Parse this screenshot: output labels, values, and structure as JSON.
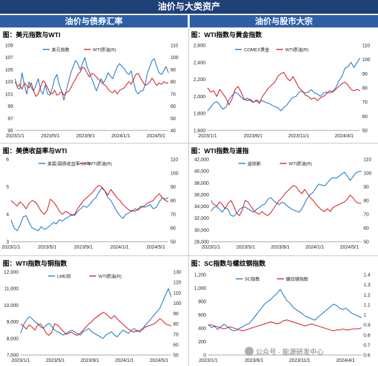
{
  "header": {
    "title": "油价与大类资产",
    "left_column": "油价与债券汇率",
    "right_column": "油价与股市大宗"
  },
  "colors": {
    "blue": "#1f77c9",
    "red": "#d62021",
    "banner": "#1f3f77",
    "colhead": "#2d5fa8"
  },
  "watermark": "公众号 · 能源研发中心",
  "chart_data": [
    {
      "id": "p1",
      "title": "图：美元指数与WTI",
      "type": "line",
      "xticks": [
        "2023/1/1",
        "2023/5/1",
        "2023/9/1",
        "2024/1/1",
        "2024/5/1"
      ],
      "left_axis": {
        "ticks": [
          "109",
          "107",
          "105",
          "103",
          "101",
          "99",
          "97",
          "95"
        ],
        "min": 95,
        "max": 109
      },
      "right_axis": {
        "ticks": [
          "110",
          "100",
          "90",
          "80",
          "70",
          "60",
          "50",
          "40"
        ],
        "min": 40,
        "max": 110
      },
      "series": [
        {
          "name": "美元指数",
          "axis": "left",
          "color": "#1f77c9",
          "values": [
            103.5,
            102.0,
            101.8,
            104.5,
            102.5,
            101.0,
            103.0,
            102.0,
            101.5,
            102.5,
            103.5,
            101.5,
            101.0,
            102.5,
            101.0,
            100.8,
            102.0,
            103.5,
            104.2,
            102.5,
            101.5,
            100.0,
            101.5,
            103.0,
            104.5,
            105.5,
            106.5,
            106.0,
            105.0,
            106.0,
            107.0,
            105.5,
            104.5,
            103.5,
            102.5,
            101.5,
            102.5,
            103.5,
            102.8,
            103.5,
            104.5,
            104.0,
            103.5,
            104.5,
            105.5,
            106.0,
            105.5,
            105.2,
            104.5,
            104.2,
            104.8,
            103.0,
            101.5,
            101.0,
            101.5,
            101.5,
            102.5,
            104.5,
            105.5,
            106.5,
            106.8,
            105.5,
            104.5,
            104.2,
            104.8,
            105.5,
            104.5
          ]
        },
        {
          "name": "WTI原油(R)",
          "axis": "right",
          "color": "#d62021",
          "values": [
            80,
            76,
            78,
            74,
            79,
            77,
            75,
            79,
            72,
            68,
            70,
            76,
            81,
            79,
            75,
            71,
            70,
            73,
            69,
            70,
            72,
            69,
            71,
            72,
            75,
            79,
            82,
            86,
            88,
            92,
            91,
            87,
            84,
            87,
            86,
            84,
            82,
            80,
            78,
            77,
            74,
            72,
            71,
            73,
            70,
            73,
            74,
            75,
            78,
            80,
            78,
            82,
            86,
            87,
            83,
            80,
            77,
            78,
            80,
            83,
            80,
            77,
            79,
            78,
            80,
            79,
            79
          ]
        }
      ]
    },
    {
      "id": "p2",
      "title": "图：WTI指数与黄金指数",
      "type": "line",
      "xticks": [
        "2023/1/1",
        "2023/6/1",
        "2023/11/1",
        "2024/4/1"
      ],
      "left_axis": {
        "ticks": [
          "2,600",
          "2,400",
          "2,200",
          "2,000",
          "1,800",
          "1,600"
        ],
        "min": 1600,
        "max": 2600
      },
      "right_axis": {
        "ticks": [
          "110",
          "100",
          "90",
          "80",
          "70",
          "60",
          "50"
        ],
        "min": 50,
        "max": 110
      },
      "series": [
        {
          "name": "COMEX黄金",
          "axis": "left",
          "color": "#1f77c9",
          "values": [
            1830,
            1870,
            1920,
            1940,
            1900,
            1850,
            1870,
            1960,
            2010,
            2050,
            2030,
            1990,
            1960,
            1980,
            1950,
            1930,
            1960,
            1940,
            1950,
            1930,
            1920,
            1900,
            1880,
            1870,
            1830,
            1870,
            1900,
            1950,
            1990,
            2000,
            2050,
            2060,
            2040,
            2050,
            2080,
            2040,
            2030,
            2000,
            2040,
            2050,
            2040,
            2060,
            2100,
            2180,
            2230,
            2330,
            2350,
            2400,
            2340,
            2400,
            2450
          ]
        },
        {
          "name": "WTI原油(R)",
          "axis": "right",
          "color": "#d62021",
          "values": [
            80,
            77,
            78,
            74,
            79,
            76,
            73,
            68,
            72,
            79,
            81,
            77,
            72,
            71,
            72,
            70,
            71,
            69,
            74,
            77,
            80,
            82,
            84,
            88,
            90,
            91,
            87,
            85,
            88,
            84,
            80,
            78,
            75,
            74,
            72,
            73,
            71,
            73,
            74,
            76,
            78,
            77,
            79,
            81,
            83,
            84,
            82,
            79,
            78,
            79,
            78
          ]
        }
      ]
    },
    {
      "id": "p3",
      "title": "图：美债收益率与WTI",
      "type": "line",
      "xticks": [
        "2023/1/1",
        "2023/5/1",
        "2023/9/1",
        "2024/1/1",
        "2024/5/1"
      ],
      "left_axis": {
        "ticks": [
          "6",
          "5",
          "4",
          "3"
        ],
        "min": 3,
        "max": 6
      },
      "right_axis": {
        "ticks": [
          "110",
          "100",
          "90",
          "80",
          "70",
          "60",
          "50"
        ],
        "min": 50,
        "max": 110
      },
      "series": [
        {
          "name": "美国:国债收益率:10年",
          "axis": "left",
          "color": "#1f77c9",
          "values": [
            3.8,
            3.5,
            3.4,
            3.6,
            3.9,
            3.95,
            3.7,
            3.5,
            3.45,
            3.4,
            3.55,
            3.45,
            3.5,
            3.6,
            3.7,
            3.65,
            3.8,
            3.75,
            3.85,
            3.9,
            4.0,
            3.95,
            4.1,
            4.2,
            4.3,
            4.25,
            4.35,
            4.5,
            4.6,
            4.8,
            4.95,
            4.85,
            4.6,
            4.5,
            4.3,
            4.1,
            3.95,
            3.85,
            4.0,
            4.05,
            4.15,
            4.1,
            4.2,
            4.3,
            4.25,
            4.3,
            4.35,
            4.2,
            4.25,
            4.45,
            4.6,
            4.55,
            4.6
          ]
        },
        {
          "name": "WTI原油(R)",
          "axis": "right",
          "color": "#d62021",
          "values": [
            80,
            78,
            76,
            79,
            77,
            74,
            78,
            80,
            79,
            76,
            72,
            70,
            73,
            81,
            79,
            76,
            72,
            70,
            72,
            71,
            69,
            70,
            74,
            77,
            80,
            82,
            84,
            86,
            89,
            91,
            90,
            87,
            84,
            88,
            85,
            82,
            80,
            77,
            75,
            73,
            72,
            74,
            73,
            75,
            76,
            78,
            79,
            80,
            83,
            85,
            82,
            80,
            79
          ]
        }
      ]
    },
    {
      "id": "p4",
      "title": "图：WTI指数与道指",
      "type": "line",
      "xticks": [
        "2023/1/1",
        "2023/5/1",
        "2023/9/1",
        "2024/1/1",
        "2024/5/1"
      ],
      "left_axis": {
        "ticks": [
          "42,000",
          "40,000",
          "38,000",
          "36,000",
          "34,000",
          "32,000",
          "30,000",
          "28,000"
        ],
        "min": 28000,
        "max": 42000
      },
      "right_axis": {
        "ticks": [
          "110",
          "100",
          "90",
          "80",
          "70",
          "60",
          "50"
        ],
        "min": 50,
        "max": 110
      },
      "series": [
        {
          "name": "道琼斯",
          "axis": "left",
          "color": "#1f77c9",
          "values": [
            33200,
            33800,
            34000,
            33500,
            33000,
            33800,
            33500,
            32500,
            32300,
            32800,
            33500,
            33800,
            33900,
            33600,
            33300,
            33000,
            33500,
            33800,
            34200,
            34400,
            35200,
            35500,
            35000,
            34600,
            34300,
            34700,
            34500,
            34000,
            33700,
            33400,
            33200,
            33000,
            33600,
            34500,
            35500,
            36000,
            36400,
            37200,
            37800,
            37600,
            37500,
            38000,
            38600,
            38900,
            38800,
            39100,
            39500,
            39800,
            39200,
            38400,
            39000,
            39700,
            39900,
            40000
          ]
        },
        {
          "name": "WTI原油(R)",
          "axis": "right",
          "color": "#d62021",
          "values": [
            80,
            77,
            76,
            79,
            77,
            74,
            78,
            80,
            76,
            71,
            69,
            73,
            80,
            79,
            76,
            73,
            71,
            70,
            72,
            70,
            69,
            71,
            74,
            77,
            80,
            82,
            85,
            87,
            89,
            91,
            90,
            87,
            85,
            88,
            85,
            82,
            80,
            77,
            75,
            73,
            72,
            74,
            72,
            75,
            76,
            77,
            78,
            79,
            81,
            84,
            82,
            79,
            78,
            78
          ]
        }
      ]
    },
    {
      "id": "p5",
      "title": "图：WTI指数与铜指数",
      "type": "line",
      "xticks": [
        "2023/1/1",
        "2023/5/1",
        "2023/9/1",
        "2024/1/1",
        "2024/5/1"
      ],
      "left_axis": {
        "ticks": [
          "12,000",
          "11,000",
          "10,000",
          "9,000",
          "8,000",
          "7,000"
        ],
        "min": 7000,
        "max": 12000
      },
      "right_axis": {
        "ticks": [
          "130",
          "120",
          "110",
          "100",
          "90",
          "80",
          "70",
          "60",
          "50"
        ],
        "min": 50,
        "max": 130
      },
      "series": [
        {
          "name": "LME铜",
          "axis": "left",
          "color": "#1f77c9",
          "values": [
            8300,
            8800,
            9100,
            9300,
            9200,
            9000,
            8900,
            8700,
            8600,
            8800,
            8900,
            8700,
            8500,
            8400,
            8300,
            8200,
            8300,
            8400,
            8500,
            8400,
            8300,
            8200,
            8400,
            8500,
            8600,
            8400,
            8300,
            8200,
            8100,
            8000,
            8200,
            8300,
            8400,
            8200,
            8100,
            8300,
            8500,
            8400,
            8300,
            8500,
            8600,
            8400,
            8500,
            8600,
            8800,
            9000,
            9200,
            9400,
            9600,
            9800,
            10200,
            10600,
            11000,
            10500
          ]
        },
        {
          "name": "WTI原油(R)",
          "axis": "right",
          "color": "#d62021",
          "values": [
            80,
            78,
            75,
            79,
            77,
            74,
            79,
            80,
            76,
            71,
            69,
            72,
            80,
            79,
            76,
            73,
            70,
            71,
            72,
            70,
            69,
            71,
            74,
            77,
            80,
            82,
            85,
            87,
            89,
            91,
            90,
            87,
            85,
            88,
            85,
            82,
            80,
            77,
            75,
            73,
            72,
            74,
            72,
            75,
            77,
            78,
            79,
            80,
            82,
            85,
            83,
            80,
            79,
            78
          ]
        }
      ]
    },
    {
      "id": "p6",
      "title": "图：SC指数与螺纹钢指数",
      "type": "line",
      "xticks": [
        "2023/1/1",
        "2023/6/1",
        "2023/11/1",
        "2024/4/1"
      ],
      "left_axis": {
        "ticks": [
          "1,200",
          "1,000",
          "800",
          "600",
          "400",
          "200",
          "0"
        ],
        "min": 0,
        "max": 1200
      },
      "right_axis": {
        "ticks": [
          "1.4",
          "1.3",
          "1.2",
          "1.1",
          "1",
          "0.9",
          "0.8",
          "0.7",
          "0.6"
        ],
        "min": 0.6,
        "max": 1.4
      },
      "series": [
        {
          "name": "SC指数",
          "axis": "left",
          "color": "#1f77c9",
          "values": [
            450,
            410,
            430,
            380,
            420,
            460,
            430,
            390,
            360,
            370,
            400,
            420,
            450,
            470,
            520,
            580,
            640,
            700,
            760,
            800,
            830,
            880,
            920,
            980,
            900,
            820,
            780,
            720,
            680,
            650,
            620,
            580,
            560,
            540,
            520,
            560,
            600,
            640,
            680,
            720,
            760,
            740,
            700,
            680,
            700,
            660,
            620,
            600,
            580,
            560
          ]
        },
        {
          "name": "螺纹钢指数",
          "axis": "right",
          "color": "#d62021",
          "values": [
            0.9,
            0.9,
            0.89,
            0.88,
            0.87,
            0.86,
            0.87,
            0.88,
            0.87,
            0.86,
            0.85,
            0.84,
            0.85,
            0.86,
            0.87,
            0.88,
            0.89,
            0.9,
            0.91,
            0.92,
            0.93,
            0.92,
            0.91,
            0.92,
            0.94,
            0.95,
            0.94,
            0.93,
            0.92,
            0.91,
            0.9,
            0.89,
            0.9,
            0.91,
            0.9,
            0.89,
            0.88,
            0.87,
            0.86,
            0.85,
            0.84,
            0.85,
            0.85,
            0.86,
            0.85,
            0.85,
            0.86,
            0.86,
            0.86,
            0.87
          ]
        }
      ]
    }
  ]
}
